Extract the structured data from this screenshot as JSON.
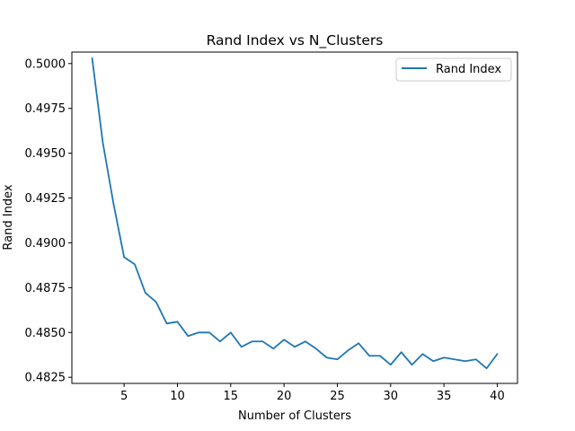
{
  "chart_data": {
    "type": "line",
    "title": "Rand Index vs N_Clusters",
    "xlabel": "Number of Clusters",
    "ylabel": "Rand Index",
    "xlim": [
      0.1,
      41.9
    ],
    "ylim": [
      0.48216,
      0.50064
    ],
    "xticks": [
      5,
      10,
      15,
      20,
      25,
      30,
      35,
      40
    ],
    "yticks": [
      0.4825,
      0.485,
      0.4875,
      0.49,
      0.4925,
      0.495,
      0.4975,
      0.5
    ],
    "ytick_labels": [
      "0.4825",
      "0.4850",
      "0.4875",
      "0.4900",
      "0.4925",
      "0.4950",
      "0.4975",
      "0.5000"
    ],
    "grid": false,
    "legend_position": "top-right",
    "series": [
      {
        "name": "Rand Index",
        "color": "#1f77b4",
        "x": [
          2,
          3,
          4,
          5,
          6,
          7,
          8,
          9,
          10,
          11,
          12,
          13,
          14,
          15,
          16,
          17,
          18,
          19,
          20,
          21,
          22,
          23,
          24,
          25,
          26,
          27,
          28,
          29,
          30,
          31,
          32,
          33,
          34,
          35,
          36,
          37,
          38,
          39,
          40
        ],
        "y": [
          0.5003,
          0.4956,
          0.4922,
          0.4892,
          0.4888,
          0.4872,
          0.4867,
          0.4855,
          0.4856,
          0.4848,
          0.485,
          0.485,
          0.4845,
          0.485,
          0.4842,
          0.4845,
          0.4845,
          0.4841,
          0.4846,
          0.4842,
          0.4845,
          0.4841,
          0.4836,
          0.4835,
          0.484,
          0.4844,
          0.4837,
          0.4837,
          0.4832,
          0.4839,
          0.4832,
          0.4838,
          0.4834,
          0.4836,
          0.4835,
          0.4834,
          0.4835,
          0.483,
          0.4838
        ]
      }
    ]
  }
}
